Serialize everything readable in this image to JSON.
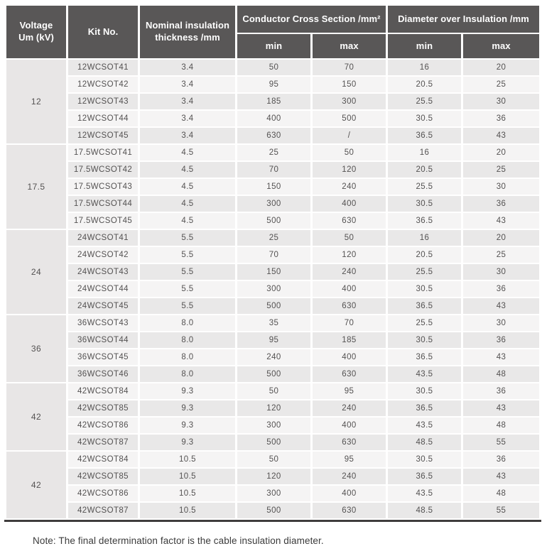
{
  "colors": {
    "header_bg": "#595757",
    "header_text": "#ffffff",
    "row_dark": "#e9e8e8",
    "row_light": "#f5f4f4",
    "voltage_bg": "#e8e6e6",
    "body_text": "#545252",
    "line_dark": "#3f3d3d",
    "note_text": "#3b3b3b"
  },
  "table": {
    "columns": {
      "voltage_line1": "Voltage",
      "voltage_line2": "Um (kV)",
      "kit": "Kit No.",
      "thickness": "Nominal insulation thickness /mm",
      "ccs": "Conductor Cross Section /mm²",
      "dia": "Diameter over Insulation /mm",
      "min": "min",
      "max": "max"
    },
    "groups": [
      {
        "voltage": "12",
        "rows": [
          {
            "kit": "12WCSOT41",
            "thickness": "3.4",
            "ccs_min": "50",
            "ccs_max": "70",
            "dia_min": "16",
            "dia_max": "20"
          },
          {
            "kit": "12WCSOT42",
            "thickness": "3.4",
            "ccs_min": "95",
            "ccs_max": "150",
            "dia_min": "20.5",
            "dia_max": "25"
          },
          {
            "kit": "12WCSOT43",
            "thickness": "3.4",
            "ccs_min": "185",
            "ccs_max": "300",
            "dia_min": "25.5",
            "dia_max": "30"
          },
          {
            "kit": "12WCSOT44",
            "thickness": "3.4",
            "ccs_min": "400",
            "ccs_max": "500",
            "dia_min": "30.5",
            "dia_max": "36"
          },
          {
            "kit": "12WCSOT45",
            "thickness": "3.4",
            "ccs_min": "630",
            "ccs_max": "/",
            "dia_min": "36.5",
            "dia_max": "43"
          }
        ]
      },
      {
        "voltage": "17.5",
        "rows": [
          {
            "kit": "17.5WCSOT41",
            "thickness": "4.5",
            "ccs_min": "25",
            "ccs_max": "50",
            "dia_min": "16",
            "dia_max": "20"
          },
          {
            "kit": "17.5WCSOT42",
            "thickness": "4.5",
            "ccs_min": "70",
            "ccs_max": "120",
            "dia_min": "20.5",
            "dia_max": "25"
          },
          {
            "kit": "17.5WCSOT43",
            "thickness": "4.5",
            "ccs_min": "150",
            "ccs_max": "240",
            "dia_min": "25.5",
            "dia_max": "30"
          },
          {
            "kit": "17.5WCSOT44",
            "thickness": "4.5",
            "ccs_min": "300",
            "ccs_max": "400",
            "dia_min": "30.5",
            "dia_max": "36"
          },
          {
            "kit": "17.5WCSOT45",
            "thickness": "4.5",
            "ccs_min": "500",
            "ccs_max": "630",
            "dia_min": "36.5",
            "dia_max": "43"
          }
        ]
      },
      {
        "voltage": "24",
        "rows": [
          {
            "kit": "24WCSOT41",
            "thickness": "5.5",
            "ccs_min": "25",
            "ccs_max": "50",
            "dia_min": "16",
            "dia_max": "20"
          },
          {
            "kit": "24WCSOT42",
            "thickness": "5.5",
            "ccs_min": "70",
            "ccs_max": "120",
            "dia_min": "20.5",
            "dia_max": "25"
          },
          {
            "kit": "24WCSOT43",
            "thickness": "5.5",
            "ccs_min": "150",
            "ccs_max": "240",
            "dia_min": "25.5",
            "dia_max": "30"
          },
          {
            "kit": "24WCSOT44",
            "thickness": "5.5",
            "ccs_min": "300",
            "ccs_max": "400",
            "dia_min": "30.5",
            "dia_max": "36"
          },
          {
            "kit": "24WCSOT45",
            "thickness": "5.5",
            "ccs_min": "500",
            "ccs_max": "630",
            "dia_min": "36.5",
            "dia_max": "43"
          }
        ]
      },
      {
        "voltage": "36",
        "rows": [
          {
            "kit": "36WCSOT43",
            "thickness": "8.0",
            "ccs_min": "35",
            "ccs_max": "70",
            "dia_min": "25.5",
            "dia_max": "30"
          },
          {
            "kit": "36WCSOT44",
            "thickness": "8.0",
            "ccs_min": "95",
            "ccs_max": "185",
            "dia_min": "30.5",
            "dia_max": "36"
          },
          {
            "kit": "36WCSOT45",
            "thickness": "8.0",
            "ccs_min": "240",
            "ccs_max": "400",
            "dia_min": "36.5",
            "dia_max": "43"
          },
          {
            "kit": "36WCSOT46",
            "thickness": "8.0",
            "ccs_min": "500",
            "ccs_max": "630",
            "dia_min": "43.5",
            "dia_max": "48"
          }
        ]
      },
      {
        "voltage": "42",
        "rows": [
          {
            "kit": "42WCSOT84",
            "thickness": "9.3",
            "ccs_min": "50",
            "ccs_max": "95",
            "dia_min": "30.5",
            "dia_max": "36"
          },
          {
            "kit": "42WCSOT85",
            "thickness": "9.3",
            "ccs_min": "120",
            "ccs_max": "240",
            "dia_min": "36.5",
            "dia_max": "43"
          },
          {
            "kit": "42WCSOT86",
            "thickness": "9.3",
            "ccs_min": "300",
            "ccs_max": "400",
            "dia_min": "43.5",
            "dia_max": "48"
          },
          {
            "kit": "42WCSOT87",
            "thickness": "9.3",
            "ccs_min": "500",
            "ccs_max": "630",
            "dia_min": "48.5",
            "dia_max": "55"
          }
        ]
      },
      {
        "voltage": "42",
        "rows": [
          {
            "kit": "42WCSOT84",
            "thickness": "10.5",
            "ccs_min": "50",
            "ccs_max": "95",
            "dia_min": "30.5",
            "dia_max": "36"
          },
          {
            "kit": "42WCSOT85",
            "thickness": "10.5",
            "ccs_min": "120",
            "ccs_max": "240",
            "dia_min": "36.5",
            "dia_max": "43"
          },
          {
            "kit": "42WCSOT86",
            "thickness": "10.5",
            "ccs_min": "300",
            "ccs_max": "400",
            "dia_min": "43.5",
            "dia_max": "48"
          },
          {
            "kit": "42WCSOT87",
            "thickness": "10.5",
            "ccs_min": "500",
            "ccs_max": "630",
            "dia_min": "48.5",
            "dia_max": "55"
          }
        ]
      }
    ]
  },
  "note": "Note: The final determination factor is the cable insulation diameter."
}
